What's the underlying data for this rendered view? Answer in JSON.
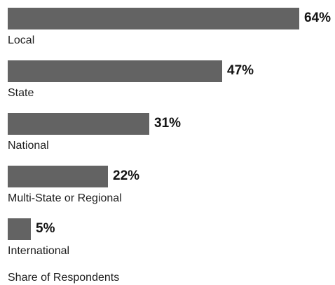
{
  "chart_data": {
    "type": "bar",
    "orientation": "horizontal",
    "categories": [
      "Local",
      "State",
      "National",
      "Multi-State or Regional",
      "International"
    ],
    "values": [
      64,
      47,
      31,
      22,
      5
    ],
    "value_labels": [
      "64%",
      "47%",
      "31%",
      "22%",
      "5%"
    ],
    "unit": "%",
    "title": "",
    "xlabel": "Share of Respondents",
    "ylabel": "",
    "xlim": [
      0,
      64
    ],
    "grid": false,
    "legend": "none",
    "bar_color": "#636363"
  }
}
